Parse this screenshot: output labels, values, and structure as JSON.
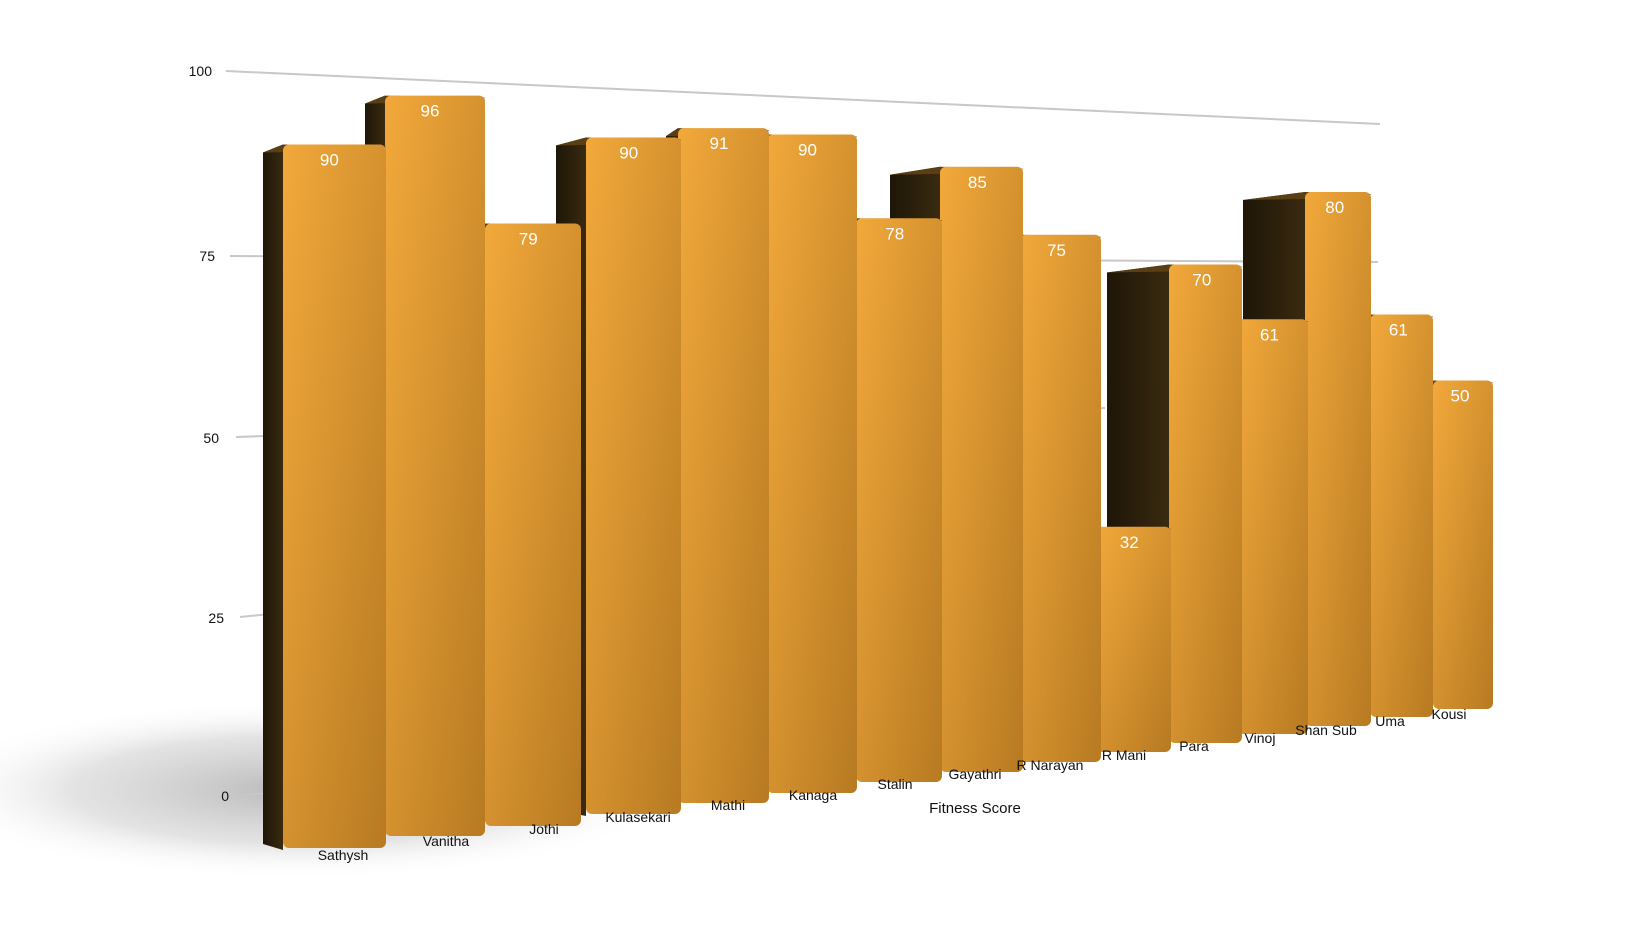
{
  "chart_data": {
    "type": "bar",
    "style": "3d-perspective",
    "xlabel": "Fitness Score",
    "ylabel": "",
    "ylim": [
      0,
      100
    ],
    "yticks": [
      0,
      25,
      50,
      75,
      100
    ],
    "ytick_labels": [
      "0",
      "25",
      "50",
      "75",
      "100"
    ],
    "grid": true,
    "legend": "none",
    "data_labels": true,
    "categories": [
      "Sathysh",
      "Vanitha",
      "Jothi",
      "Kulasekari",
      "Mathi",
      "Kanaga",
      "Stalin",
      "Gayathri",
      "R Narayan",
      "R Mani",
      "Para",
      "Vinoj",
      "Shan Sub",
      "Uma",
      "Kousi"
    ],
    "values": [
      90,
      96,
      79,
      90,
      91,
      90,
      78,
      85,
      75,
      32,
      70,
      61,
      80,
      61,
      50
    ],
    "value_labels": [
      "90",
      "96",
      "79",
      "90",
      "91",
      "90",
      "78",
      "85",
      "75",
      "32",
      "70",
      "61",
      "80",
      "61",
      "50"
    ],
    "colors": {
      "bar_front_light": "#f2a93b",
      "bar_front_dark": "#b77a22",
      "bar_side": "#2b1f0c",
      "bar_top": "#e9a036",
      "data_label": "#ffffff",
      "axis_text": "#111111",
      "grid": "#c8c8c8",
      "shadow": "#bdbdbd"
    }
  }
}
